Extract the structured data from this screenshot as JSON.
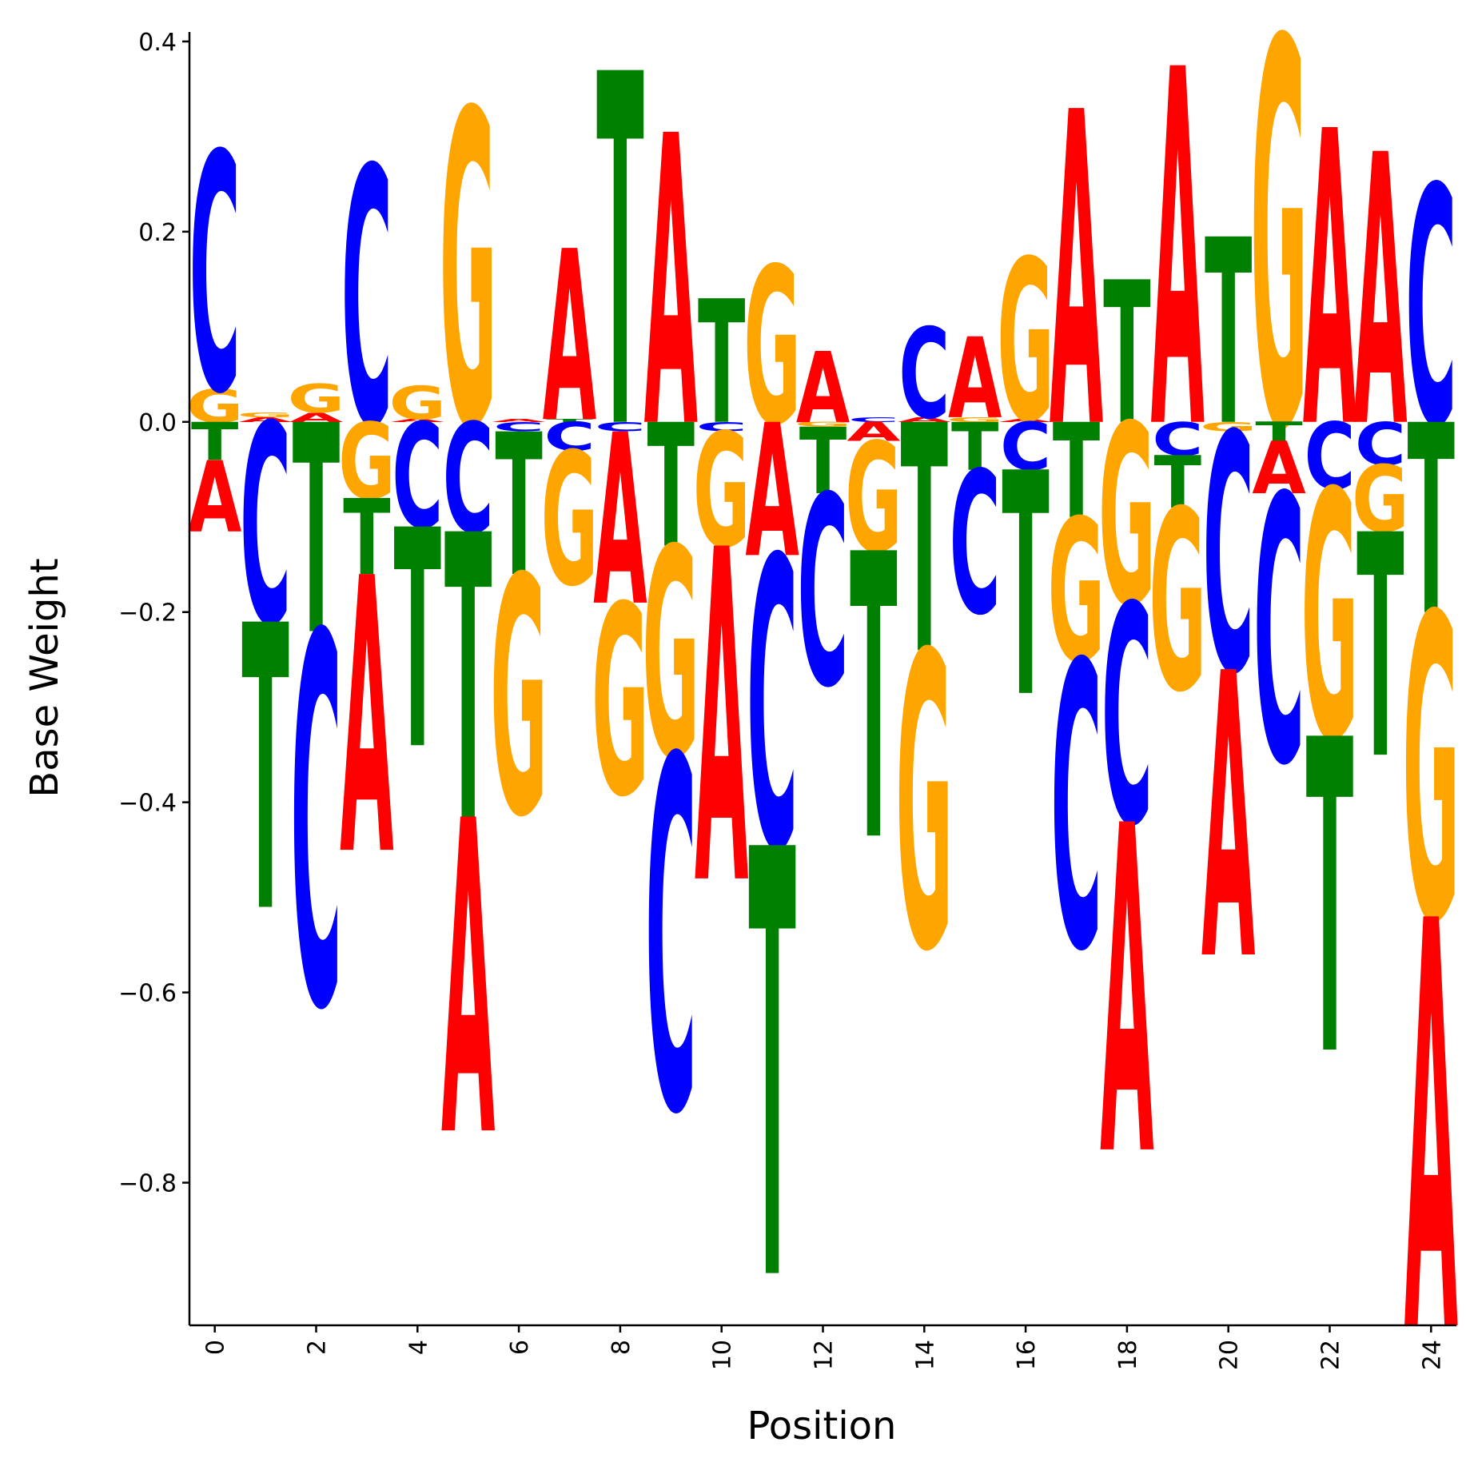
{
  "chart_data": {
    "type": "sequence-logo",
    "xlabel": "Position",
    "ylabel": "Base Weight",
    "xlim": [
      -0.5,
      24.5
    ],
    "ylim": [
      -0.95,
      0.41
    ],
    "xticks": [
      0,
      2,
      4,
      6,
      8,
      10,
      12,
      14,
      16,
      18,
      20,
      22,
      24
    ],
    "yticks": [
      0.4,
      0.2,
      0.0,
      -0.2,
      -0.4,
      -0.6,
      -0.8
    ],
    "ytick_labels": [
      "0.4",
      "0.2",
      "0.0",
      "−0.2",
      "−0.4",
      "−0.6",
      "−0.8"
    ],
    "colors": {
      "A": "#ff0000",
      "C": "#0000ff",
      "G": "#ffa500",
      "T": "#008000"
    },
    "positions": [
      {
        "pos": 0,
        "A": -0.075,
        "C": 0.25,
        "G": 0.035,
        "T": -0.04
      },
      {
        "pos": 1,
        "A": 0.005,
        "C": -0.21,
        "G": 0.005,
        "T": -0.3
      },
      {
        "pos": 2,
        "A": 0.01,
        "C": -0.39,
        "G": 0.03,
        "T": -0.22
      },
      {
        "pos": 3,
        "A": -0.29,
        "C": 0.27,
        "G": -0.08,
        "T": -0.08
      },
      {
        "pos": 4,
        "A": 0.003,
        "C": -0.11,
        "G": 0.035,
        "T": -0.23
      },
      {
        "pos": 5,
        "A": -0.33,
        "C": -0.115,
        "G": 0.33,
        "T": -0.3
      },
      {
        "pos": 6,
        "A": 0.003,
        "C": -0.01,
        "G": -0.25,
        "T": -0.15
      },
      {
        "pos": 7,
        "A": 0.18,
        "C": -0.03,
        "G": -0.14,
        "T": 0.003
      },
      {
        "pos": 8,
        "A": -0.18,
        "C": -0.01,
        "G": -0.2,
        "T": 0.37
      },
      {
        "pos": 9,
        "A": 0.305,
        "C": -0.37,
        "G": -0.22,
        "T": -0.13
      },
      {
        "pos": 10,
        "A": -0.35,
        "C": -0.01,
        "G": -0.12,
        "T": 0.13
      },
      {
        "pos": 11,
        "A": -0.14,
        "C": -0.305,
        "G": 0.165,
        "T": -0.45
      },
      {
        "pos": 12,
        "A": 0.075,
        "C": -0.2,
        "G": -0.005,
        "T": -0.07
      },
      {
        "pos": 13,
        "A": -0.02,
        "C": 0.005,
        "G": -0.115,
        "T": -0.3
      },
      {
        "pos": 14,
        "A": 0.005,
        "C": 0.095,
        "G": -0.31,
        "T": -0.24
      },
      {
        "pos": 15,
        "A": 0.085,
        "C": -0.15,
        "G": 0.005,
        "T": -0.05
      },
      {
        "pos": 16,
        "A": 0.003,
        "C": -0.05,
        "G": 0.17,
        "T": -0.235
      },
      {
        "pos": 17,
        "A": 0.33,
        "C": -0.3,
        "G": -0.15,
        "T": -0.1
      },
      {
        "pos": 18,
        "A": -0.345,
        "C": -0.23,
        "G": -0.19,
        "T": 0.15
      },
      {
        "pos": 19,
        "A": 0.375,
        "C": -0.035,
        "G": -0.19,
        "T": -0.055
      },
      {
        "pos": 20,
        "A": -0.3,
        "C": -0.25,
        "G": -0.01,
        "T": 0.195
      },
      {
        "pos": 21,
        "A": -0.055,
        "C": -0.28,
        "G": 0.405,
        "T": -0.02
      },
      {
        "pos": 22,
        "A": 0.31,
        "C": -0.07,
        "G": -0.26,
        "T": -0.33
      },
      {
        "pos": 23,
        "A": 0.285,
        "C": -0.045,
        "G": -0.07,
        "T": -0.235
      },
      {
        "pos": 24,
        "A": -0.43,
        "C": 0.25,
        "G": -0.32,
        "T": -0.2
      }
    ]
  }
}
